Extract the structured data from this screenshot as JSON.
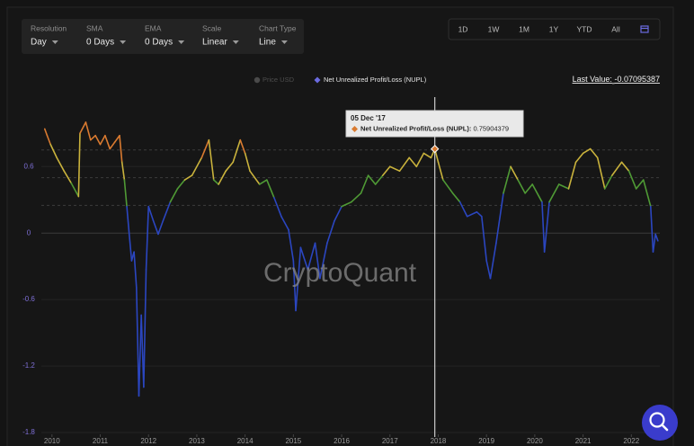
{
  "controls": [
    {
      "label": "Resolution",
      "value": "Day"
    },
    {
      "label": "SMA",
      "value": "0 Days"
    },
    {
      "label": "EMA",
      "value": "0 Days"
    },
    {
      "label": "Scale",
      "value": "Linear"
    },
    {
      "label": "Chart Type",
      "value": "Line"
    }
  ],
  "ranges": [
    "1D",
    "1W",
    "1M",
    "1Y",
    "YTD",
    "All"
  ],
  "watermark": "CryptoQuant",
  "chart_data": {
    "type": "line",
    "log_scale": false,
    "grid": true,
    "hidden_series": [
      {
        "name": "Price USD",
        "color": "#4a4a4a"
      }
    ],
    "series": [
      {
        "name": "Net Unrealized Profit/Loss (NUPL)",
        "color": "#6b6be0",
        "x": [
          2009.85,
          2009.9,
          2009.97,
          2010.1,
          2010.25,
          2010.4,
          2010.55,
          2010.58,
          2010.7,
          2010.8,
          2010.9,
          2011.0,
          2011.1,
          2011.2,
          2011.3,
          2011.4,
          2011.45,
          2011.5,
          2011.55,
          2011.6,
          2011.65,
          2011.7,
          2011.75,
          2011.8,
          2011.85,
          2011.9,
          2011.95,
          2012.0,
          2012.1,
          2012.2,
          2012.3,
          2012.45,
          2012.6,
          2012.75,
          2012.9,
          2013.1,
          2013.25,
          2013.35,
          2013.45,
          2013.6,
          2013.75,
          2013.9,
          2014.0,
          2014.1,
          2014.3,
          2014.45,
          2014.6,
          2014.75,
          2014.9,
          2015.0,
          2015.05,
          2015.15,
          2015.3,
          2015.45,
          2015.55,
          2015.7,
          2015.85,
          2016.0,
          2016.2,
          2016.4,
          2016.55,
          2016.7,
          2016.85,
          2017.0,
          2017.2,
          2017.4,
          2017.55,
          2017.7,
          2017.85,
          2017.93,
          2018.0,
          2018.1,
          2018.3,
          2018.45,
          2018.6,
          2018.8,
          2018.9,
          2019.0,
          2019.08,
          2019.2,
          2019.35,
          2019.5,
          2019.65,
          2019.8,
          2019.95,
          2020.15,
          2020.2,
          2020.3,
          2020.5,
          2020.7,
          2020.85,
          2021.0,
          2021.15,
          2021.3,
          2021.45,
          2021.6,
          2021.8,
          2021.95,
          2022.1,
          2022.25,
          2022.4,
          2022.45,
          2022.5,
          2022.55
        ],
        "values": [
          0.94,
          0.88,
          0.8,
          0.68,
          0.56,
          0.45,
          0.33,
          0.9,
          1.0,
          0.84,
          0.88,
          0.8,
          0.88,
          0.76,
          0.82,
          0.88,
          0.64,
          0.48,
          0.24,
          -0.01,
          -0.25,
          -0.17,
          -0.49,
          -1.47,
          -0.74,
          -1.39,
          -0.33,
          0.24,
          0.11,
          -0.01,
          0.11,
          0.28,
          0.4,
          0.48,
          0.52,
          0.68,
          0.84,
          0.48,
          0.44,
          0.56,
          0.64,
          0.84,
          0.72,
          0.56,
          0.44,
          0.48,
          0.32,
          0.15,
          0.03,
          -0.25,
          -0.7,
          -0.13,
          -0.33,
          -0.09,
          -0.41,
          -0.09,
          0.11,
          0.24,
          0.28,
          0.36,
          0.52,
          0.44,
          0.52,
          0.6,
          0.56,
          0.68,
          0.6,
          0.72,
          0.68,
          0.76,
          0.64,
          0.48,
          0.36,
          0.28,
          0.15,
          0.19,
          0.15,
          -0.25,
          -0.41,
          -0.09,
          0.36,
          0.6,
          0.48,
          0.36,
          0.44,
          0.28,
          -0.17,
          0.28,
          0.44,
          0.4,
          0.64,
          0.72,
          0.76,
          0.68,
          0.4,
          0.52,
          0.64,
          0.56,
          0.4,
          0.48,
          0.24,
          -0.17,
          -0.01,
          -0.07
        ]
      }
    ],
    "thresholds": [
      0.25,
      0.5,
      0.75
    ],
    "threshold_colors": [
      "#2b46c0",
      "#4f9a35",
      "#c9b23c",
      "#d97a30",
      "#c8443a"
    ],
    "xlim": [
      2009.78,
      2022.59
    ],
    "xticks": [
      2010,
      2011,
      2012,
      2013,
      2014,
      2015,
      2016,
      2017,
      2018,
      2019,
      2020,
      2021,
      2022
    ],
    "ylim": [
      -1.8,
      1.3
    ],
    "yticks": [
      0.6,
      0,
      -0.6,
      -1.2,
      -1.8
    ],
    "last_value_label": "Last Value:",
    "last_value": -0.07095387,
    "tooltip": {
      "x": 2017.93,
      "date": "05 Dec '17",
      "label": "Net Unrealized Profit/Loss (NUPL):",
      "value": 0.75904379
    }
  }
}
